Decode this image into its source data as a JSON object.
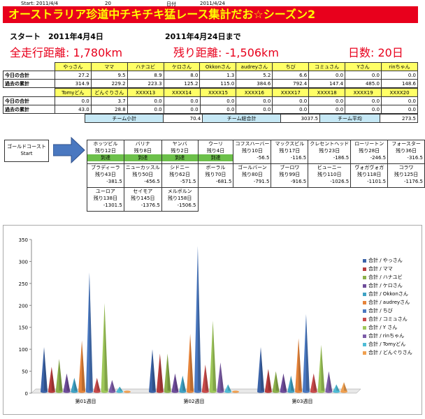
{
  "header": {
    "start_label": "Start: 2011/4/4",
    "day_value": "20",
    "date_label": "日付",
    "date_value": "2011/4/24"
  },
  "banner_title": "オーストラリア珍道中チキチキ猛レース集計だお☆シーズン2",
  "period": {
    "start": "スタート　2011年4月4日",
    "end": "2011年4月24日まで"
  },
  "summary": {
    "total_distance": "全走行距離: 1,780km",
    "remaining": "残り距離: -1,506km",
    "days": "日数: 20日"
  },
  "table1": {
    "row_today": "今日の合計",
    "row_past": "過去の累計",
    "names": [
      "やっさん",
      "ママ",
      "ハナユビ",
      "ケロさん",
      "Okkonさん",
      "audreyさん",
      "ちび",
      "コミュさん",
      "Yさん",
      "rinちゃん"
    ],
    "today": [
      "27.2",
      "9.5",
      "8.9",
      "8.0",
      "1.3",
      "5.2",
      "6.6",
      "0.0",
      "0.0",
      "0.0"
    ],
    "past": [
      "314.9",
      "229.2",
      "223.3",
      "125.2",
      "115.0",
      "384.6",
      "792.4",
      "147.4",
      "485.0",
      "148.6"
    ]
  },
  "table2": {
    "row_today": "今日の合計",
    "row_past": "過去の累計",
    "names": [
      "Tomyどん",
      "どんぐりさん",
      "XXXX13",
      "XXXX14",
      "XXXX15",
      "XXXX16",
      "XXXX17",
      "XXXX18",
      "XXXX19",
      "XXXX20"
    ],
    "today": [
      "0.0",
      "3.7",
      "0.0",
      "0.0",
      "0.0",
      "0.0",
      "0.0",
      "0.0",
      "0.0",
      "0.0"
    ],
    "past": [
      "43.0",
      "28.8",
      "0.0",
      "0.0",
      "0.0",
      "0.0",
      "0.0",
      "0.0",
      "0.0",
      "0.0"
    ]
  },
  "team": {
    "subtotal_label": "チーム小計",
    "subtotal_value": "70.4",
    "total_label": "チーム総合計",
    "total_value": "3037.5",
    "avg_label": "チーム平均",
    "avg_value": "273.5"
  },
  "route": {
    "start_line1": "ゴールドコースト",
    "start_line2": "Start",
    "arrived_label": "到達",
    "stops": [
      {
        "name": "ホッツビル",
        "remain": "残り12日",
        "dist": "",
        "arrived": true
      },
      {
        "name": "バリナ",
        "remain": "残り8日",
        "dist": "",
        "arrived": true
      },
      {
        "name": "ヤンバ",
        "remain": "残り2日",
        "dist": "",
        "arrived": true
      },
      {
        "name": "ウーリ",
        "remain": "残り4日",
        "dist": "",
        "arrived": true
      },
      {
        "name": "コフスハーバー",
        "remain": "残り10日",
        "dist": "-56.5",
        "arrived": false
      },
      {
        "name": "マックスビル",
        "remain": "残り17日",
        "dist": "-116.5",
        "arrived": false
      },
      {
        "name": "クレセントヘッド",
        "remain": "残り23日",
        "dist": "-186.5",
        "arrived": false
      },
      {
        "name": "ローリートン",
        "remain": "残り28日",
        "dist": "-246.5",
        "arrived": false
      },
      {
        "name": "フォースター",
        "remain": "残り36日",
        "dist": "-316.5",
        "arrived": false
      },
      {
        "name": "ブラディーラ",
        "remain": "残り43日",
        "dist": "-381.5",
        "arrived": false
      },
      {
        "name": "ニューカッスル",
        "remain": "残り50日",
        "dist": "-456.5",
        "arrived": false
      },
      {
        "name": "シドニー",
        "remain": "残り62日",
        "dist": "-571.5",
        "arrived": false
      },
      {
        "name": "ボーラル",
        "remain": "残り70日",
        "dist": "-681.5",
        "arrived": false
      },
      {
        "name": "ゴールバーン",
        "remain": "残り80日",
        "dist": "-791.5",
        "arrived": false
      },
      {
        "name": "ブーロワ",
        "remain": "残り99日",
        "dist": "-916.5",
        "arrived": false
      },
      {
        "name": "ビューニー",
        "remain": "残り110日",
        "dist": "-1026.5",
        "arrived": false
      },
      {
        "name": "ヴォガヴォガ",
        "remain": "残り118日",
        "dist": "-1101.5",
        "arrived": false
      },
      {
        "name": "コラワ",
        "remain": "残り125日",
        "dist": "-1176.5",
        "arrived": false
      },
      {
        "name": "ユーロア",
        "remain": "残り138日",
        "dist": "-1301.5",
        "arrived": false
      },
      {
        "name": "セイモア",
        "remain": "残り145日",
        "dist": "-1376.5",
        "arrived": false
      },
      {
        "name": "メルボルン",
        "remain": "残り158日",
        "dist": "-1506.5",
        "arrived": false
      }
    ]
  },
  "chart_data": {
    "type": "bar",
    "style": "3d-cone",
    "categories": [
      "第01週目",
      "第02週目",
      "第03週目"
    ],
    "ylim": [
      0,
      350
    ],
    "yticks": [
      0,
      50,
      100,
      150,
      200,
      250,
      300,
      350
    ],
    "grid": false,
    "legend_position": "right",
    "series": [
      {
        "name": "合計 / やっさん",
        "color": "#3b63a8",
        "values": [
          105,
          100,
          105
        ]
      },
      {
        "name": "合計 / ママ",
        "color": "#b83c3c",
        "values": [
          60,
          90,
          55
        ]
      },
      {
        "name": "合計 / ハナユビ",
        "color": "#8cb04a",
        "values": [
          78,
          90,
          50
        ]
      },
      {
        "name": "合計 / ケロさん",
        "color": "#6e4c9a",
        "values": [
          45,
          45,
          45
        ]
      },
      {
        "name": "合計 / Okkonさん",
        "color": "#3fa2c4",
        "values": [
          35,
          40,
          40
        ]
      },
      {
        "name": "合計 / audreyさん",
        "color": "#e6843a",
        "values": [
          120,
          135,
          125
        ]
      },
      {
        "name": "合計 / ちび",
        "color": "#4a78c0",
        "values": [
          275,
          335,
          180
        ]
      },
      {
        "name": "合計 / コミュさん",
        "color": "#c84b4b",
        "values": [
          35,
          65,
          45
        ]
      },
      {
        "name": "合計 / Y さん",
        "color": "#9fc85a",
        "values": [
          205,
          165,
          110
        ]
      },
      {
        "name": "合計 / rinちゃん",
        "color": "#7d5ca8",
        "values": [
          30,
          70,
          50
        ]
      },
      {
        "name": "合計 / Tomyどん",
        "color": "#4fbcd6",
        "values": [
          15,
          20,
          20
        ]
      },
      {
        "name": "合計 / どんぐりさん",
        "color": "#f0a050",
        "values": [
          5,
          5,
          25
        ]
      }
    ]
  }
}
